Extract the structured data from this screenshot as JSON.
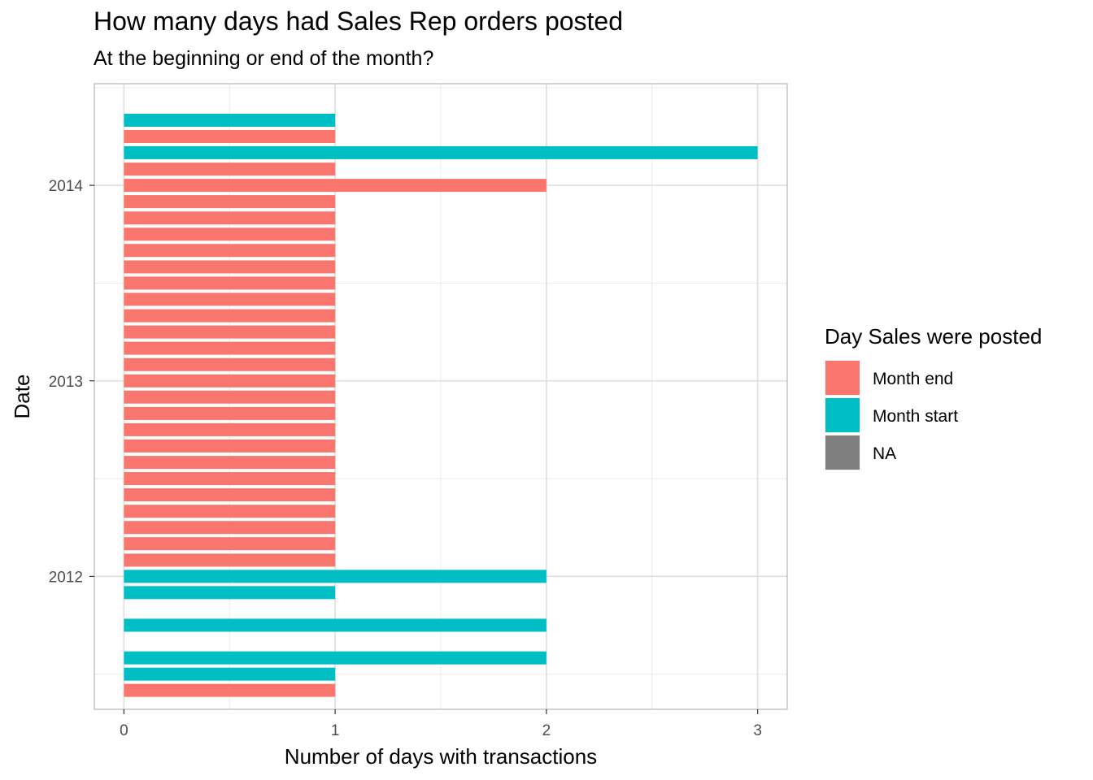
{
  "chart_data": {
    "type": "bar",
    "orientation": "horizontal",
    "title": "How many days had Sales Rep orders posted",
    "subtitle": "At the beginning or end of the month?",
    "xlabel": "Number of days with transactions",
    "ylabel": "Date",
    "xlim": [
      -0.14,
      3.14
    ],
    "ylim": [
      2011.32,
      2014.52
    ],
    "x_ticks": [
      0,
      1,
      2,
      3
    ],
    "y_ticks": [
      2012,
      2013,
      2014
    ],
    "grid": true,
    "legend": {
      "title": "Day Sales were posted",
      "position": "right",
      "entries": [
        {
          "label": "Month end",
          "color": "#F8766D"
        },
        {
          "label": "Month start",
          "color": "#00BFC4"
        },
        {
          "label": "NA",
          "color": "#7F7F7F"
        }
      ]
    },
    "bars": [
      {
        "date": 2011.417,
        "value": 1,
        "group": "Month end"
      },
      {
        "date": 2011.5,
        "value": 1,
        "group": "Month start"
      },
      {
        "date": 2011.583,
        "value": 2,
        "group": "Month start"
      },
      {
        "date": 2011.75,
        "value": 2,
        "group": "Month start"
      },
      {
        "date": 2011.917,
        "value": 1,
        "group": "Month start"
      },
      {
        "date": 2012.0,
        "value": 2,
        "group": "Month start"
      },
      {
        "date": 2012.083,
        "value": 1,
        "group": "Month end"
      },
      {
        "date": 2012.167,
        "value": 1,
        "group": "Month end"
      },
      {
        "date": 2012.25,
        "value": 1,
        "group": "Month end"
      },
      {
        "date": 2012.333,
        "value": 1,
        "group": "Month end"
      },
      {
        "date": 2012.417,
        "value": 1,
        "group": "Month end"
      },
      {
        "date": 2012.5,
        "value": 1,
        "group": "Month end"
      },
      {
        "date": 2012.583,
        "value": 1,
        "group": "Month end"
      },
      {
        "date": 2012.667,
        "value": 1,
        "group": "Month end"
      },
      {
        "date": 2012.75,
        "value": 1,
        "group": "Month end"
      },
      {
        "date": 2012.833,
        "value": 1,
        "group": "Month end"
      },
      {
        "date": 2012.917,
        "value": 1,
        "group": "Month end"
      },
      {
        "date": 2013.0,
        "value": 1,
        "group": "Month end"
      },
      {
        "date": 2013.083,
        "value": 1,
        "group": "Month end"
      },
      {
        "date": 2013.167,
        "value": 1,
        "group": "Month end"
      },
      {
        "date": 2013.25,
        "value": 1,
        "group": "Month end"
      },
      {
        "date": 2013.333,
        "value": 1,
        "group": "Month end"
      },
      {
        "date": 2013.417,
        "value": 1,
        "group": "Month end"
      },
      {
        "date": 2013.5,
        "value": 1,
        "group": "Month end"
      },
      {
        "date": 2013.583,
        "value": 1,
        "group": "Month end"
      },
      {
        "date": 2013.667,
        "value": 1,
        "group": "Month end"
      },
      {
        "date": 2013.75,
        "value": 1,
        "group": "Month end"
      },
      {
        "date": 2013.833,
        "value": 1,
        "group": "Month end"
      },
      {
        "date": 2013.917,
        "value": 1,
        "group": "Month end"
      },
      {
        "date": 2014.0,
        "value": 2,
        "group": "Month end"
      },
      {
        "date": 2014.083,
        "value": 1,
        "group": "Month end"
      },
      {
        "date": 2014.167,
        "value": 3,
        "group": "Month start"
      },
      {
        "date": 2014.25,
        "value": 1,
        "group": "Month end"
      },
      {
        "date": 2014.333,
        "value": 1,
        "group": "Month start"
      }
    ]
  }
}
